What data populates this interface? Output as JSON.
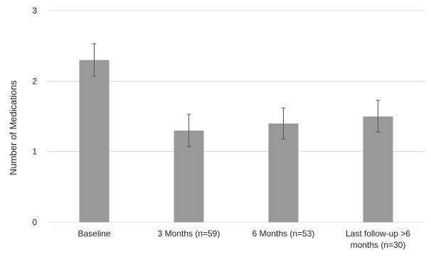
{
  "chart_data": {
    "type": "bar",
    "ylabel": "Number of Medications",
    "ylim": [
      0,
      3
    ],
    "yticks": [
      "0",
      "1",
      "2",
      "3"
    ],
    "grid": "horizontal",
    "categories": [
      [
        "Baseline"
      ],
      [
        "3 Months (n=59)"
      ],
      [
        "6 Months (n=53)"
      ],
      [
        "Last follow-up >6",
        "months (n=30)"
      ]
    ],
    "values": [
      2.3,
      1.3,
      1.4,
      1.5
    ],
    "error_low": [
      2.07,
      1.07,
      1.18,
      1.28
    ],
    "error_high": [
      2.53,
      1.53,
      1.62,
      1.73
    ],
    "bar_color": "#999999",
    "grid_color": "#dcdcdc",
    "error_color": "#555555"
  }
}
